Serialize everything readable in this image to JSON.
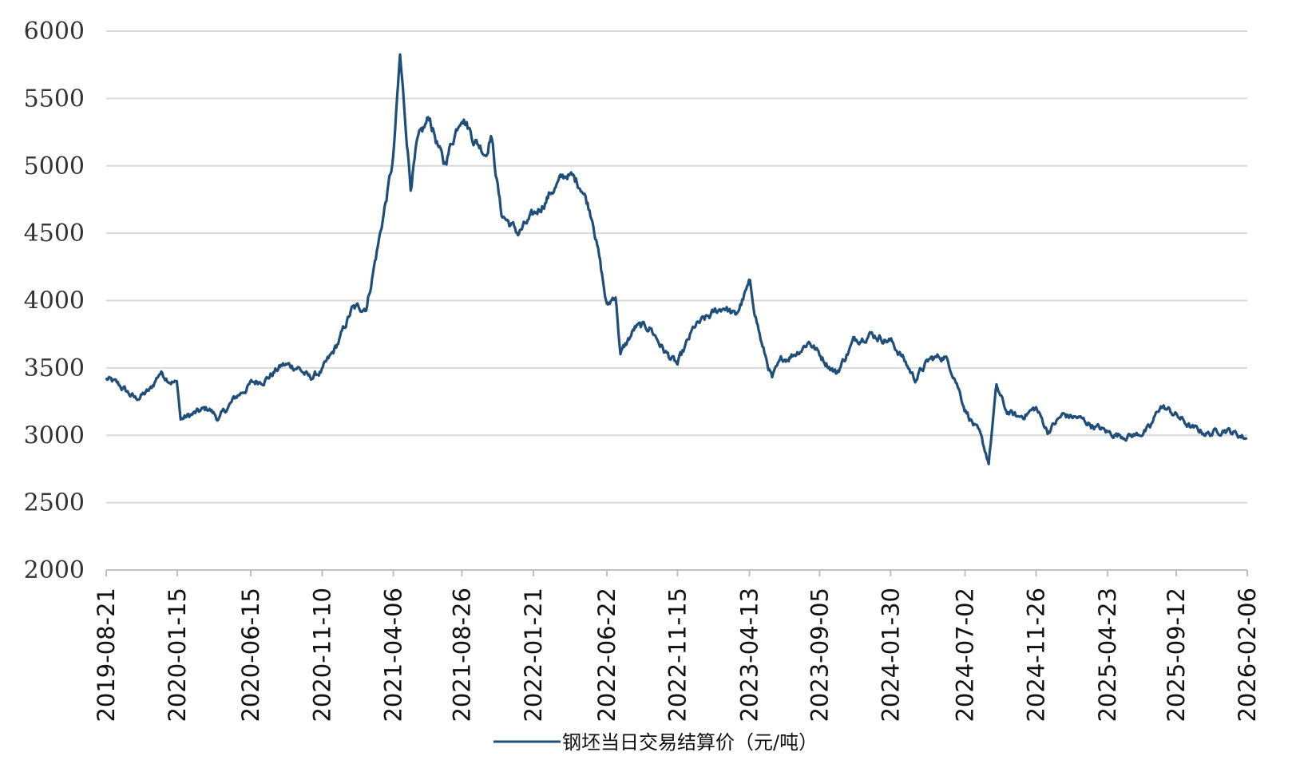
{
  "chart_data": {
    "type": "line",
    "title": "",
    "xlabel": "",
    "ylabel": "",
    "ylim": [
      2000,
      6000
    ],
    "yticks": [
      "2000",
      "2500",
      "3000",
      "3500",
      "4000",
      "4500",
      "5000",
      "5500",
      "6000"
    ],
    "xticks": [
      "2019-08-21",
      "2020-01-15",
      "2020-06-15",
      "2020-11-10",
      "2021-04-06",
      "2021-08-26",
      "2022-01-21",
      "2022-06-22",
      "2022-11-15",
      "2023-04-13",
      "2023-09-05",
      "2024-01-30",
      "2024-07-02",
      "2024-11-26",
      "2025-04-23",
      "2025-09-12",
      "2026-02-06"
    ],
    "grid": "horizontal",
    "legend_position": "bottom",
    "colors": {
      "line": "#1f4e79",
      "grid": "#d9d9d9",
      "axis": "#bfbfbf"
    },
    "series": [
      {
        "name": "钢坯当日交易结算价（元/吨）",
        "x": [
          "2019-08-21",
          "2019-09-20",
          "2019-10-20",
          "2019-11-20",
          "2019-12-10",
          "2020-01-15",
          "2020-01-22",
          "2020-02-20",
          "2020-03-20",
          "2020-04-10",
          "2020-05-15",
          "2020-06-15",
          "2020-07-20",
          "2020-08-20",
          "2020-09-20",
          "2020-10-15",
          "2020-11-10",
          "2020-12-01",
          "2020-12-15",
          "2021-01-10",
          "2021-02-10",
          "2021-03-10",
          "2021-04-06",
          "2021-04-20",
          "2021-05-12",
          "2021-05-25",
          "2021-06-20",
          "2021-07-20",
          "2021-08-26",
          "2021-09-20",
          "2021-10-15",
          "2021-10-25",
          "2021-11-15",
          "2021-12-20",
          "2022-01-21",
          "2022-03-01",
          "2022-04-01",
          "2022-05-01",
          "2022-05-25",
          "2022-06-22",
          "2022-07-10",
          "2022-07-20",
          "2022-08-20",
          "2022-09-20",
          "2022-10-20",
          "2022-11-15",
          "2022-12-20",
          "2023-01-20",
          "2023-02-20",
          "2023-03-15",
          "2023-04-13",
          "2023-05-10",
          "2023-05-30",
          "2023-06-20",
          "2023-07-20",
          "2023-08-15",
          "2023-09-05",
          "2023-10-10",
          "2023-11-15",
          "2023-12-15",
          "2024-01-30",
          "2024-02-20",
          "2024-03-20",
          "2024-04-20",
          "2024-05-20",
          "2024-06-10",
          "2024-07-02",
          "2024-08-01",
          "2024-08-20",
          "2024-09-05",
          "2024-09-25",
          "2024-10-20",
          "2024-11-26",
          "2024-12-20",
          "2025-01-20",
          "2025-02-20",
          "2025-03-20",
          "2025-04-23",
          "2025-05-20",
          "2025-06-20",
          "2025-07-20",
          "2025-08-10",
          "2025-09-12",
          "2025-10-15",
          "2025-11-20",
          "2025-12-20",
          "2026-01-20",
          "2026-02-06"
        ],
        "values": [
          3420,
          3360,
          3270,
          3330,
          3470,
          3380,
          3120,
          3160,
          3200,
          3120,
          3280,
          3380,
          3430,
          3520,
          3510,
          3420,
          3480,
          3600,
          3700,
          3930,
          3960,
          4500,
          5050,
          5800,
          4860,
          5150,
          5360,
          5000,
          5400,
          5200,
          5100,
          5250,
          4650,
          4500,
          4620,
          4820,
          4940,
          4850,
          4600,
          3950,
          4050,
          3600,
          3800,
          3800,
          3620,
          3520,
          3800,
          3880,
          3960,
          3880,
          4120,
          3650,
          3420,
          3560,
          3620,
          3700,
          3600,
          3460,
          3700,
          3760,
          3700,
          3600,
          3420,
          3560,
          3590,
          3450,
          3200,
          3000,
          2800,
          3360,
          3180,
          3130,
          3200,
          3030,
          3150,
          3130,
          3080,
          3020,
          3000,
          3000,
          3050,
          3220,
          3150,
          3050,
          3010,
          3050,
          3000,
          2980
        ]
      }
    ]
  }
}
